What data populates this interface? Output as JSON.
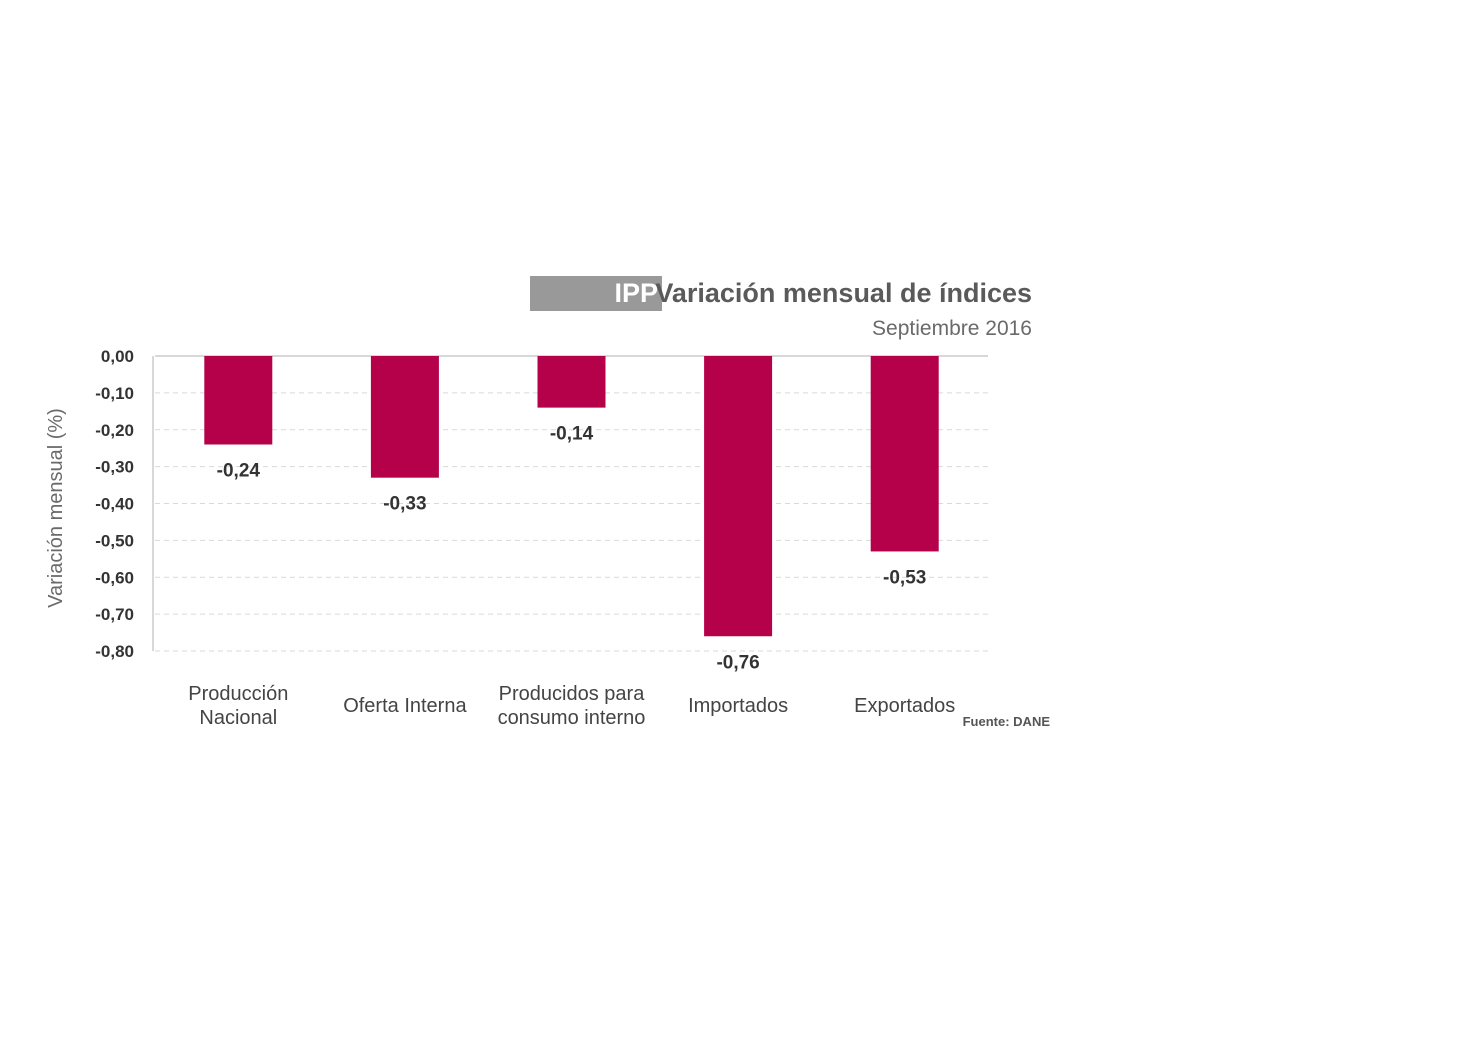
{
  "chart_data": {
    "type": "bar",
    "title_badge": "IPP",
    "title": "Variación mensual de índices",
    "subtitle": "Septiembre 2016",
    "ylabel": "Variación mensual (%)",
    "xlabel": "",
    "ylim": [
      -0.8,
      0.0
    ],
    "yticks": [
      0.0,
      -0.1,
      -0.2,
      -0.3,
      -0.4,
      -0.5,
      -0.6,
      -0.7,
      -0.8
    ],
    "ytick_labels": [
      "0,00",
      "-0,10",
      "-0,20",
      "-0,30",
      "-0,40",
      "-0,50",
      "-0,60",
      "-0,70",
      "-0,80"
    ],
    "categories": [
      [
        "Producción",
        "Nacional"
      ],
      [
        "Oferta Interna"
      ],
      [
        "Producidos para",
        "consumo interno"
      ],
      [
        "Importados"
      ],
      [
        "Exportados"
      ]
    ],
    "values": [
      -0.24,
      -0.33,
      -0.14,
      -0.76,
      -0.53
    ],
    "value_labels": [
      "-0,24",
      "-0,33",
      "-0,14",
      "-0,76",
      "-0,53"
    ],
    "grid": true,
    "legend": "none",
    "source": "Fuente: DANE",
    "colors": {
      "bar": "#b5004a",
      "badge": "#999999",
      "grid": "#d9d9d9",
      "axis": "#cccccc"
    }
  }
}
